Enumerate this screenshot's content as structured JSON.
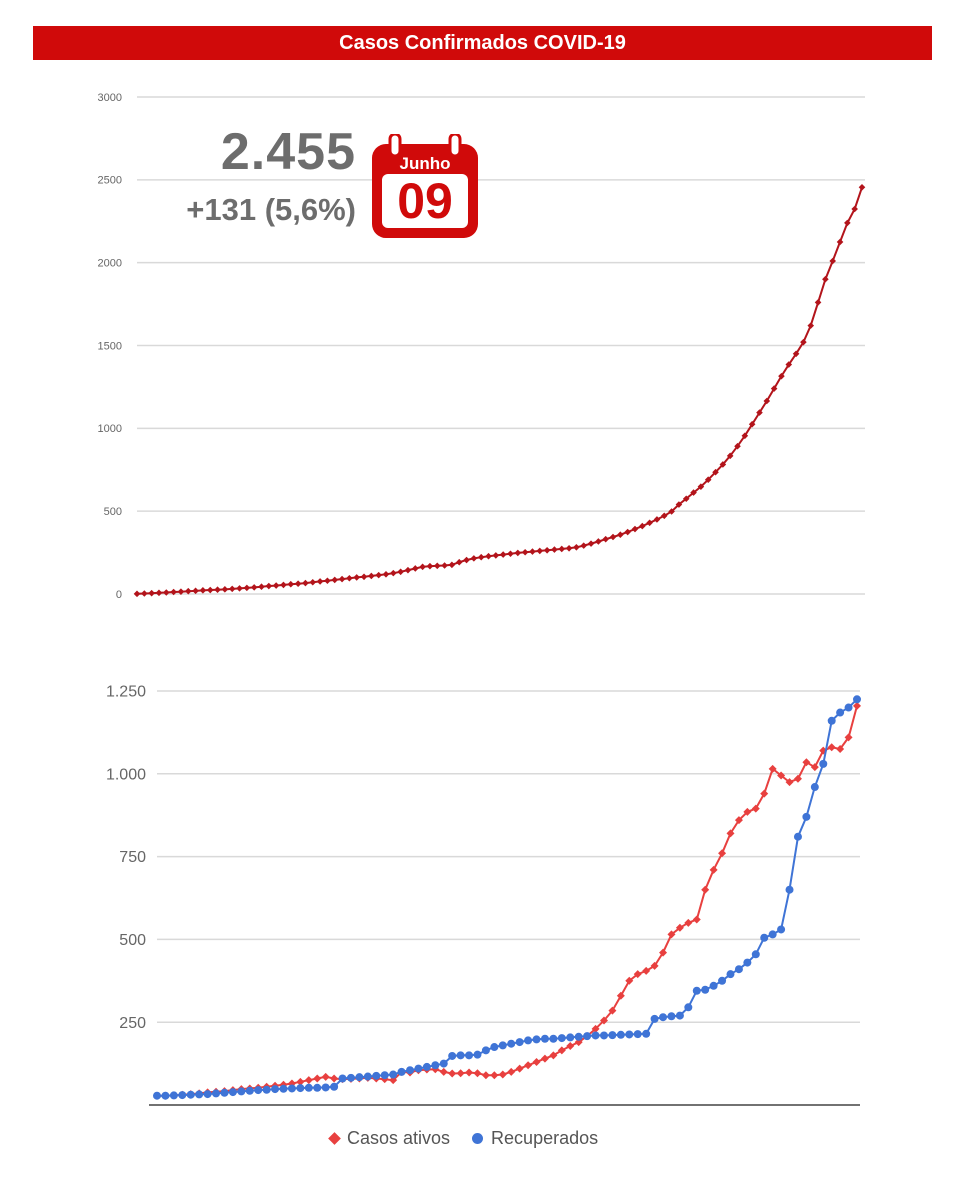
{
  "header": {
    "title": "Casos Confirmados COVID-19"
  },
  "summary": {
    "total": "2.455",
    "delta": "+131 (5,6%)",
    "calendar_month": "Junho",
    "calendar_day": "09"
  },
  "colors": {
    "banner": "#d00a0a",
    "confirmed": "#b3141b",
    "active": "#e8403f",
    "recovered": "#3f74d6",
    "grid": "#d9d9d9"
  },
  "chart_data": [
    {
      "type": "line",
      "title": "",
      "xlabel": "",
      "ylabel": "",
      "ylim": [
        0,
        3000
      ],
      "yticks": [
        "0",
        "500",
        "1000",
        "1500",
        "2000",
        "2500",
        "3000"
      ],
      "grid": true,
      "series": [
        {
          "values": [
            1,
            3,
            5,
            7,
            9,
            12,
            14,
            17,
            19,
            22,
            24,
            26,
            28,
            31,
            34,
            37,
            40,
            44,
            48,
            51,
            55,
            59,
            62,
            66,
            71,
            76,
            80,
            85,
            90,
            95,
            100,
            104,
            109,
            114,
            119,
            126,
            134,
            144,
            154,
            164,
            168,
            170,
            172,
            176,
            192,
            205,
            215,
            222,
            228,
            233,
            238,
            243,
            248,
            252,
            256,
            260,
            264,
            268,
            272,
            276,
            282,
            292,
            304,
            317,
            331,
            344,
            358,
            374,
            392,
            410,
            430,
            450,
            472,
            498,
            540,
            575,
            612,
            648,
            690,
            735,
            782,
            834,
            892,
            955,
            1025,
            1095,
            1165,
            1240,
            1315,
            1385,
            1450,
            1520,
            1620,
            1760,
            1900,
            2010,
            2125,
            2240,
            2324,
            2455
          ]
        }
      ]
    },
    {
      "type": "line",
      "title": "",
      "xlabel": "",
      "ylabel": "",
      "ylim": [
        0,
        1250
      ],
      "yticks": [
        "250",
        "500",
        "750",
        "1.000",
        "1.250"
      ],
      "grid": true,
      "legend": "bottom",
      "series": [
        {
          "name": "Casos ativos",
          "values": [
            28,
            28,
            29,
            31,
            33,
            35,
            38,
            40,
            42,
            45,
            48,
            50,
            52,
            55,
            58,
            61,
            65,
            70,
            75,
            80,
            85,
            80,
            78,
            79,
            80,
            82,
            80,
            78,
            75,
            100,
            98,
            105,
            107,
            108,
            100,
            95,
            96,
            98,
            96,
            90,
            90,
            92,
            100,
            110,
            120,
            130,
            140,
            150,
            165,
            178,
            190,
            208,
            230,
            255,
            285,
            330,
            375,
            395,
            405,
            420,
            460,
            515,
            535,
            550,
            560,
            650,
            710,
            760,
            820,
            860,
            885,
            895,
            940,
            1015,
            995,
            975,
            985,
            1035,
            1020,
            1070,
            1080,
            1075,
            1110,
            1205
          ]
        },
        {
          "values": [
            28,
            28,
            29,
            30,
            31,
            32,
            33,
            35,
            37,
            39,
            41,
            43,
            45,
            46,
            48,
            49,
            50,
            51,
            52,
            52,
            53,
            55,
            80,
            82,
            84,
            86,
            88,
            90,
            92,
            100,
            105,
            110,
            115,
            120,
            125,
            148,
            150,
            150,
            152,
            165,
            175,
            180,
            185,
            190,
            195,
            198,
            200,
            200,
            202,
            204,
            206,
            208,
            210,
            210,
            211,
            212,
            213,
            214,
            215,
            260,
            265,
            268,
            270,
            295,
            345,
            348,
            360,
            375,
            395,
            410,
            430,
            455,
            505,
            515,
            530,
            650,
            810,
            870,
            960,
            1030,
            1160,
            1185,
            1200,
            1225
          ]
        }
      ]
    }
  ],
  "legend": {
    "active_label": "Casos ativos",
    "recovered_label": "Recuperados"
  }
}
